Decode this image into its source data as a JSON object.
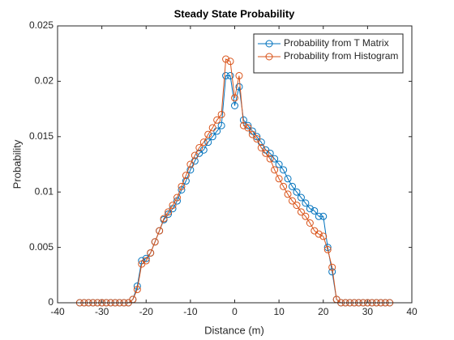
{
  "chart_data": {
    "type": "line",
    "title": "Steady State Probability",
    "xlabel": "Distance (m)",
    "ylabel": "Probability",
    "xlim": [
      -40,
      40
    ],
    "xticks": [
      -40,
      -30,
      -20,
      -10,
      0,
      10,
      20,
      30,
      40
    ],
    "ylim": [
      0,
      0.025
    ],
    "yticks": [
      0,
      0.005,
      0.01,
      0.015,
      0.02,
      0.025
    ],
    "legend": "northeast",
    "markers": "circle",
    "x": [
      -35,
      -34,
      -33,
      -32,
      -31,
      -30,
      -29,
      -28,
      -27,
      -26,
      -25,
      -24,
      -23,
      -22,
      -21,
      -20,
      -19,
      -18,
      -17,
      -16,
      -15,
      -14,
      -13,
      -12,
      -11,
      -10,
      -9,
      -8,
      -7,
      -6,
      -5,
      -4,
      -3,
      -2,
      -1,
      0,
      1,
      2,
      3,
      4,
      5,
      6,
      7,
      8,
      9,
      10,
      11,
      12,
      13,
      14,
      15,
      16,
      17,
      18,
      19,
      20,
      21,
      22,
      23,
      24,
      25,
      26,
      27,
      28,
      29,
      30,
      31,
      32,
      33,
      34,
      35
    ],
    "series": [
      {
        "name": "Probability from T Matrix",
        "color": "#0072bd",
        "values": [
          0,
          0,
          0,
          0,
          0,
          0,
          0,
          0,
          0,
          0,
          0,
          0,
          0.0003,
          0.0015,
          0.0038,
          0.004,
          0.0045,
          0.0055,
          0.0065,
          0.0075,
          0.008,
          0.0085,
          0.0092,
          0.0102,
          0.011,
          0.012,
          0.0128,
          0.0135,
          0.0138,
          0.0145,
          0.015,
          0.0155,
          0.016,
          0.0205,
          0.0205,
          0.0178,
          0.0195,
          0.0165,
          0.016,
          0.0155,
          0.015,
          0.0145,
          0.0138,
          0.0135,
          0.013,
          0.0125,
          0.012,
          0.0112,
          0.0105,
          0.01,
          0.0095,
          0.009,
          0.0085,
          0.0083,
          0.0078,
          0.0078,
          0.005,
          0.0028,
          0.0003,
          0,
          0,
          0,
          0,
          0,
          0,
          0,
          0,
          0,
          0,
          0,
          0
        ]
      },
      {
        "name": "Probability from Histogram",
        "color": "#d95319",
        "values": [
          0,
          0,
          0,
          0,
          0,
          0,
          0,
          0,
          0,
          0,
          0,
          0,
          0.0003,
          0.0012,
          0.0035,
          0.0038,
          0.0045,
          0.0055,
          0.0065,
          0.0076,
          0.0082,
          0.0088,
          0.0095,
          0.0105,
          0.0115,
          0.0125,
          0.0133,
          0.014,
          0.0145,
          0.0152,
          0.0158,
          0.0165,
          0.017,
          0.022,
          0.0218,
          0.0185,
          0.0205,
          0.016,
          0.0158,
          0.0152,
          0.0148,
          0.014,
          0.0135,
          0.013,
          0.012,
          0.0112,
          0.0105,
          0.0098,
          0.0092,
          0.0088,
          0.0082,
          0.0078,
          0.0072,
          0.0065,
          0.0062,
          0.006,
          0.0048,
          0.0032,
          0.0003,
          0,
          0,
          0,
          0,
          0,
          0,
          0,
          0,
          0,
          0,
          0,
          0
        ]
      }
    ]
  }
}
